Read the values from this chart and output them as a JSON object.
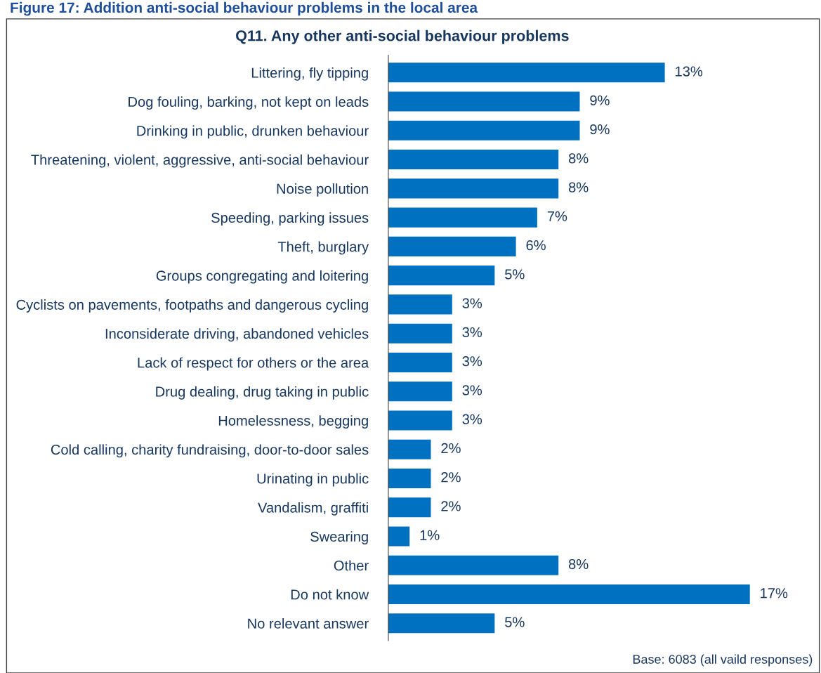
{
  "chart_data": {
    "type": "bar",
    "orientation": "horizontal",
    "title": "Figure 17: Addition anti-social behaviour problems in the local area",
    "subtitle": "Q11. Any other anti-social behaviour problems",
    "categories": [
      "Littering, fly tipping",
      "Dog fouling, barking, not kept on leads",
      "Drinking in public, drunken behaviour",
      "Threatening, violent, aggressive, anti-social behaviour",
      "Noise pollution",
      "Speeding, parking issues",
      "Theft, burglary",
      "Groups congregating and loitering",
      "Cyclists on pavements, footpaths and dangerous cycling",
      "Inconsiderate driving, abandoned vehicles",
      "Lack of respect for others or the area",
      "Drug dealing, drug taking in public",
      "Homelessness, begging",
      "Cold calling, charity fundraising, door-to-door sales",
      "Urinating in public",
      "Vandalism, graffiti",
      "Swearing",
      "Other",
      "Do not know",
      "No relevant answer"
    ],
    "values": [
      13,
      9,
      9,
      8,
      8,
      7,
      6,
      5,
      3,
      3,
      3,
      3,
      3,
      2,
      2,
      2,
      1,
      8,
      17,
      5
    ],
    "value_labels": [
      "13%",
      "9%",
      "9%",
      "8%",
      "8%",
      "7%",
      "6%",
      "5%",
      "3%",
      "3%",
      "3%",
      "3%",
      "3%",
      "2%",
      "2%",
      "2%",
      "1%",
      "8%",
      "17%",
      "5%"
    ],
    "color": "#0070c0",
    "tick_labels": "y",
    "grid": false,
    "legend": false,
    "annotations": [
      "Base: 6083 (all vaild responses)"
    ]
  }
}
